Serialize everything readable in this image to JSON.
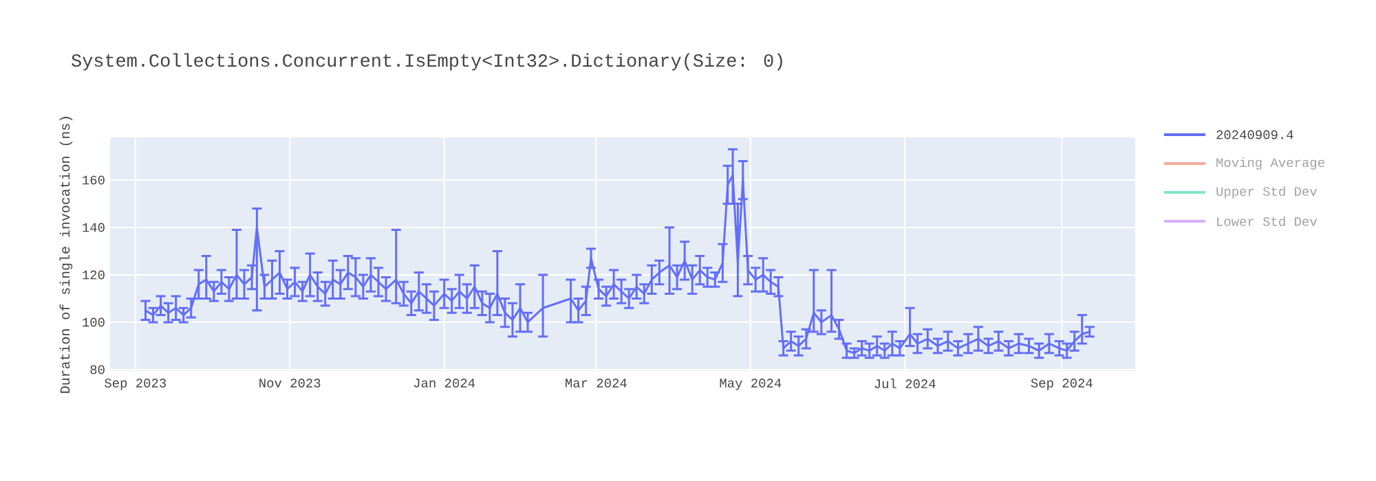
{
  "chart_data": {
    "type": "line",
    "title": "System.Collections.Concurrent.IsEmpty<Int32>.Dictionary(Size: 0)",
    "ylabel": "Duration of single invocation (ns)",
    "xlim": [
      "2023-08-22",
      "2024-09-30"
    ],
    "ylim": [
      79.4,
      178
    ],
    "xticks": [
      {
        "value": "2023-09-01",
        "label": "Sep 2023"
      },
      {
        "value": "2023-11-01",
        "label": "Nov 2023"
      },
      {
        "value": "2024-01-01",
        "label": "Jan 2024"
      },
      {
        "value": "2024-03-01",
        "label": "Mar 2024"
      },
      {
        "value": "2024-05-01",
        "label": "May 2024"
      },
      {
        "value": "2024-07-01",
        "label": "Jul 2024"
      },
      {
        "value": "2024-09-01",
        "label": "Sep 2024"
      }
    ],
    "yticks": [
      80,
      100,
      120,
      140,
      160
    ],
    "grid": true,
    "legend": "right",
    "marker": "none",
    "line_style": "solid",
    "series": [
      {
        "name": "20240909.4",
        "color": "#636efa",
        "x": [
          "2023-09-05",
          "2023-09-08",
          "2023-09-11",
          "2023-09-14",
          "2023-09-17",
          "2023-09-20",
          "2023-09-23",
          "2023-09-26",
          "2023-09-29",
          "2023-10-02",
          "2023-10-05",
          "2023-10-08",
          "2023-10-11",
          "2023-10-14",
          "2023-10-17",
          "2023-10-19",
          "2023-10-22",
          "2023-10-25",
          "2023-10-28",
          "2023-10-31",
          "2023-11-03",
          "2023-11-06",
          "2023-11-09",
          "2023-11-12",
          "2023-11-15",
          "2023-11-18",
          "2023-11-21",
          "2023-11-24",
          "2023-11-27",
          "2023-11-30",
          "2023-12-03",
          "2023-12-06",
          "2023-12-09",
          "2023-12-13",
          "2023-12-16",
          "2023-12-19",
          "2023-12-22",
          "2023-12-25",
          "2023-12-28",
          "2024-01-01",
          "2024-01-04",
          "2024-01-07",
          "2024-01-10",
          "2024-01-13",
          "2024-01-16",
          "2024-01-19",
          "2024-01-22",
          "2024-01-25",
          "2024-01-28",
          "2024-01-31",
          "2024-02-03",
          "2024-02-09",
          "2024-02-20",
          "2024-02-23",
          "2024-02-26",
          "2024-02-28",
          "2024-03-02",
          "2024-03-05",
          "2024-03-08",
          "2024-03-11",
          "2024-03-14",
          "2024-03-17",
          "2024-03-20",
          "2024-03-23",
          "2024-03-26",
          "2024-03-30",
          "2024-04-02",
          "2024-04-05",
          "2024-04-08",
          "2024-04-11",
          "2024-04-14",
          "2024-04-17",
          "2024-04-20",
          "2024-04-22",
          "2024-04-24",
          "2024-04-26",
          "2024-04-28",
          "2024-04-30",
          "2024-05-03",
          "2024-05-06",
          "2024-05-09",
          "2024-05-12",
          "2024-05-14",
          "2024-05-17",
          "2024-05-20",
          "2024-05-23",
          "2024-05-26",
          "2024-05-29",
          "2024-06-02",
          "2024-06-05",
          "2024-06-08",
          "2024-06-11",
          "2024-06-14",
          "2024-06-17",
          "2024-06-20",
          "2024-06-23",
          "2024-06-26",
          "2024-06-29",
          "2024-07-03",
          "2024-07-06",
          "2024-07-10",
          "2024-07-14",
          "2024-07-18",
          "2024-07-22",
          "2024-07-26",
          "2024-07-30",
          "2024-08-03",
          "2024-08-07",
          "2024-08-11",
          "2024-08-15",
          "2024-08-19",
          "2024-08-23",
          "2024-08-27",
          "2024-08-31",
          "2024-09-03",
          "2024-09-06",
          "2024-09-09",
          "2024-09-12"
        ],
        "values": [
          105,
          103,
          107,
          104,
          106,
          103,
          106,
          116,
          118,
          113,
          117,
          114,
          120,
          116,
          119,
          140,
          115,
          118,
          121,
          114,
          117,
          113,
          120,
          115,
          112,
          118,
          116,
          121,
          119,
          115,
          120,
          117,
          114,
          118,
          112,
          108,
          113,
          110,
          107,
          112,
          109,
          113,
          110,
          115,
          108,
          106,
          112,
          104,
          101,
          106,
          100,
          106,
          110,
          105,
          109,
          127,
          114,
          111,
          116,
          113,
          110,
          115,
          112,
          118,
          121,
          124,
          119,
          126,
          118,
          122,
          119,
          118,
          125,
          158,
          162,
          125,
          160,
          122,
          118,
          120,
          117,
          115,
          89,
          92,
          90,
          93,
          104,
          100,
          103,
          97,
          88,
          87,
          89,
          88,
          90,
          88,
          91,
          89,
          95,
          91,
          93,
          90,
          92,
          89,
          91,
          93,
          90,
          92,
          89,
          91,
          90,
          88,
          91,
          89,
          88,
          92,
          95,
          96
        ],
        "errors": [
          4,
          3,
          4,
          4,
          5,
          3,
          4,
          6,
          [
            110,
            128
          ],
          4,
          5,
          5,
          [
            110,
            139
          ],
          6,
          5,
          [
            105,
            148
          ],
          5,
          8,
          9,
          4,
          6,
          4,
          9,
          6,
          5,
          8,
          6,
          7,
          8,
          5,
          7,
          6,
          5,
          [
            108,
            139
          ],
          5,
          5,
          8,
          6,
          6,
          6,
          5,
          7,
          6,
          9,
          5,
          6,
          [
            103,
            130
          ],
          6,
          7,
          10,
          4,
          [
            94,
            120
          ],
          [
            100,
            118
          ],
          5,
          6,
          4,
          4,
          4,
          6,
          5,
          4,
          5,
          4,
          6,
          5,
          [
            112,
            140
          ],
          5,
          8,
          6,
          6,
          4,
          3,
          8,
          8,
          [
            150,
            173
          ],
          [
            111,
            150
          ],
          8,
          6,
          5,
          7,
          5,
          4,
          3,
          4,
          4,
          4,
          [
            96,
            122
          ],
          5,
          [
            96,
            122
          ],
          4,
          3,
          2,
          3,
          3,
          4,
          3,
          5,
          3,
          [
            90,
            106
          ],
          4,
          4,
          3,
          4,
          3,
          4,
          5,
          3,
          4,
          3,
          4,
          3,
          3,
          4,
          3,
          3,
          4,
          [
            91,
            103
          ],
          2
        ]
      },
      {
        "name": "Moving Average",
        "color": "#f7aa9d"
      },
      {
        "name": "Upper Std Dev",
        "color": "#80e6cb"
      },
      {
        "name": "Lower Std Dev",
        "color": "#d5b1fd"
      }
    ]
  }
}
